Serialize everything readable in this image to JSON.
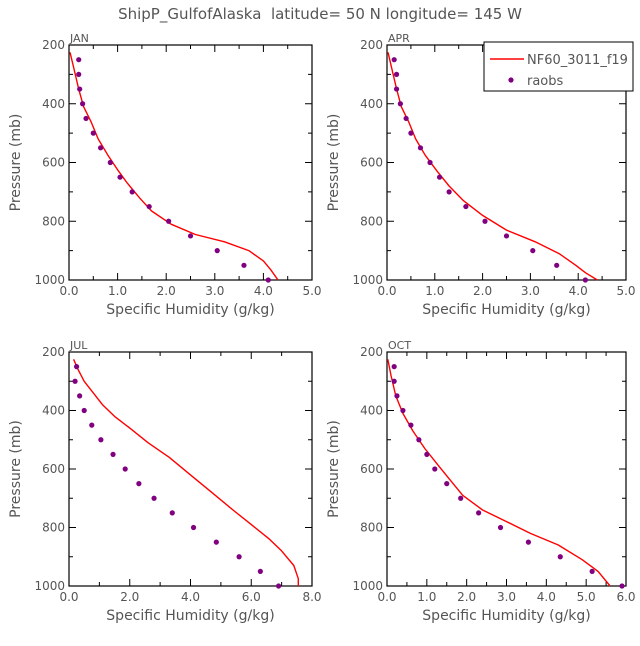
{
  "figure_title": "ShipP_GulfofAlaska  latitude= 50 N longitude= 145 W",
  "colors": {
    "model": "#ff0000",
    "obs": "#800080",
    "axis": "#000000",
    "text": "#555555"
  },
  "legend": {
    "model_label": "NF60_3011_f19",
    "obs_label": "raobs"
  },
  "chart_data": [
    {
      "type": "line",
      "panel": "JAN",
      "xlabel": "Specific Humidity (g/kg)",
      "ylabel": "Pressure (mb)",
      "xlim": [
        0,
        5
      ],
      "ylim": [
        200,
        1000
      ],
      "x_ticks": [
        "0.0",
        "1.0",
        "2.0",
        "3.0",
        "4.0",
        "5.0"
      ],
      "y_ticks": [
        "200",
        "400",
        "600",
        "800",
        "1000"
      ],
      "model": {
        "name": "NF60_3011_f19",
        "points": [
          [
            0.02,
            225
          ],
          [
            0.1,
            280
          ],
          [
            0.2,
            350
          ],
          [
            0.3,
            410
          ],
          [
            0.45,
            460
          ],
          [
            0.6,
            520
          ],
          [
            0.8,
            575
          ],
          [
            1.0,
            625
          ],
          [
            1.2,
            670
          ],
          [
            1.45,
            720
          ],
          [
            1.7,
            765
          ],
          [
            2.1,
            810
          ],
          [
            2.6,
            845
          ],
          [
            3.2,
            870
          ],
          [
            3.7,
            900
          ],
          [
            4.0,
            935
          ],
          [
            4.15,
            965
          ],
          [
            4.3,
            1000
          ]
        ]
      },
      "obs": {
        "name": "raobs",
        "points": [
          [
            0.2,
            250
          ],
          [
            0.2,
            300
          ],
          [
            0.22,
            350
          ],
          [
            0.28,
            400
          ],
          [
            0.35,
            450
          ],
          [
            0.5,
            500
          ],
          [
            0.65,
            550
          ],
          [
            0.85,
            600
          ],
          [
            1.05,
            650
          ],
          [
            1.3,
            700
          ],
          [
            1.65,
            750
          ],
          [
            2.05,
            800
          ],
          [
            2.5,
            850
          ],
          [
            3.05,
            900
          ],
          [
            3.6,
            950
          ],
          [
            4.1,
            1000
          ]
        ]
      }
    },
    {
      "type": "line",
      "panel": "APR",
      "xlabel": "Specific Humidity (g/kg)",
      "ylabel": "Pressure (mb)",
      "xlim": [
        0,
        5
      ],
      "ylim": [
        200,
        1000
      ],
      "x_ticks": [
        "0.0",
        "1.0",
        "2.0",
        "3.0",
        "4.0",
        "5.0"
      ],
      "y_ticks": [
        "200",
        "400",
        "600",
        "800",
        "1000"
      ],
      "model": {
        "name": "NF60_3011_f19",
        "points": [
          [
            0.02,
            225
          ],
          [
            0.1,
            280
          ],
          [
            0.2,
            350
          ],
          [
            0.3,
            410
          ],
          [
            0.45,
            460
          ],
          [
            0.6,
            520
          ],
          [
            0.8,
            575
          ],
          [
            1.05,
            630
          ],
          [
            1.3,
            680
          ],
          [
            1.6,
            730
          ],
          [
            2.0,
            780
          ],
          [
            2.5,
            830
          ],
          [
            3.1,
            870
          ],
          [
            3.6,
            910
          ],
          [
            3.95,
            950
          ],
          [
            4.15,
            975
          ],
          [
            4.4,
            1000
          ]
        ]
      },
      "obs": {
        "name": "raobs",
        "points": [
          [
            0.15,
            250
          ],
          [
            0.2,
            300
          ],
          [
            0.2,
            350
          ],
          [
            0.28,
            400
          ],
          [
            0.4,
            450
          ],
          [
            0.5,
            500
          ],
          [
            0.7,
            550
          ],
          [
            0.9,
            600
          ],
          [
            1.1,
            650
          ],
          [
            1.3,
            700
          ],
          [
            1.65,
            750
          ],
          [
            2.05,
            800
          ],
          [
            2.5,
            850
          ],
          [
            3.05,
            900
          ],
          [
            3.55,
            950
          ],
          [
            4.15,
            1000
          ]
        ]
      }
    },
    {
      "type": "line",
      "panel": "JUL",
      "xlabel": "Specific Humidity (g/kg)",
      "ylabel": "Pressure (mb)",
      "xlim": [
        0,
        8
      ],
      "ylim": [
        200,
        1000
      ],
      "x_ticks": [
        "0.0",
        "2.0",
        "4.0",
        "6.0",
        "8.0"
      ],
      "y_ticks": [
        "200",
        "400",
        "600",
        "800",
        "1000"
      ],
      "model": {
        "name": "NF60_3011_f19",
        "points": [
          [
            0.15,
            225
          ],
          [
            0.3,
            260
          ],
          [
            0.5,
            300
          ],
          [
            0.8,
            340
          ],
          [
            1.1,
            380
          ],
          [
            1.5,
            420
          ],
          [
            2.0,
            460
          ],
          [
            2.6,
            510
          ],
          [
            3.3,
            560
          ],
          [
            4.0,
            620
          ],
          [
            4.7,
            680
          ],
          [
            5.4,
            740
          ],
          [
            6.0,
            790
          ],
          [
            6.6,
            840
          ],
          [
            7.0,
            880
          ],
          [
            7.4,
            930
          ],
          [
            7.55,
            975
          ],
          [
            7.55,
            1000
          ]
        ]
      },
      "obs": {
        "name": "raobs",
        "points": [
          [
            0.25,
            250
          ],
          [
            0.2,
            300
          ],
          [
            0.35,
            350
          ],
          [
            0.5,
            400
          ],
          [
            0.75,
            450
          ],
          [
            1.05,
            500
          ],
          [
            1.45,
            550
          ],
          [
            1.85,
            600
          ],
          [
            2.3,
            650
          ],
          [
            2.8,
            700
          ],
          [
            3.4,
            750
          ],
          [
            4.1,
            800
          ],
          [
            4.85,
            850
          ],
          [
            5.6,
            900
          ],
          [
            6.3,
            950
          ],
          [
            6.9,
            1000
          ]
        ]
      }
    },
    {
      "type": "line",
      "panel": "OCT",
      "xlabel": "Specific Humidity (g/kg)",
      "ylabel": "Pressure (mb)",
      "xlim": [
        0,
        6
      ],
      "ylim": [
        200,
        1000
      ],
      "x_ticks": [
        "0.0",
        "1.0",
        "2.0",
        "3.0",
        "4.0",
        "5.0",
        "6.0"
      ],
      "y_ticks": [
        "200",
        "400",
        "600",
        "800",
        "1000"
      ],
      "model": {
        "name": "NF60_3011_f19",
        "points": [
          [
            0.02,
            225
          ],
          [
            0.1,
            280
          ],
          [
            0.22,
            350
          ],
          [
            0.4,
            410
          ],
          [
            0.65,
            470
          ],
          [
            0.95,
            530
          ],
          [
            1.3,
            590
          ],
          [
            1.6,
            640
          ],
          [
            1.9,
            690
          ],
          [
            2.4,
            740
          ],
          [
            3.0,
            780
          ],
          [
            3.6,
            820
          ],
          [
            4.3,
            860
          ],
          [
            4.9,
            910
          ],
          [
            5.3,
            950
          ],
          [
            5.6,
            1000
          ]
        ]
      },
      "obs": {
        "name": "raobs",
        "points": [
          [
            0.18,
            250
          ],
          [
            0.18,
            300
          ],
          [
            0.25,
            350
          ],
          [
            0.4,
            400
          ],
          [
            0.6,
            450
          ],
          [
            0.8,
            500
          ],
          [
            1.0,
            550
          ],
          [
            1.2,
            600
          ],
          [
            1.5,
            650
          ],
          [
            1.85,
            700
          ],
          [
            2.3,
            750
          ],
          [
            2.85,
            800
          ],
          [
            3.55,
            850
          ],
          [
            4.35,
            900
          ],
          [
            5.15,
            950
          ],
          [
            5.9,
            1000
          ]
        ]
      }
    }
  ]
}
